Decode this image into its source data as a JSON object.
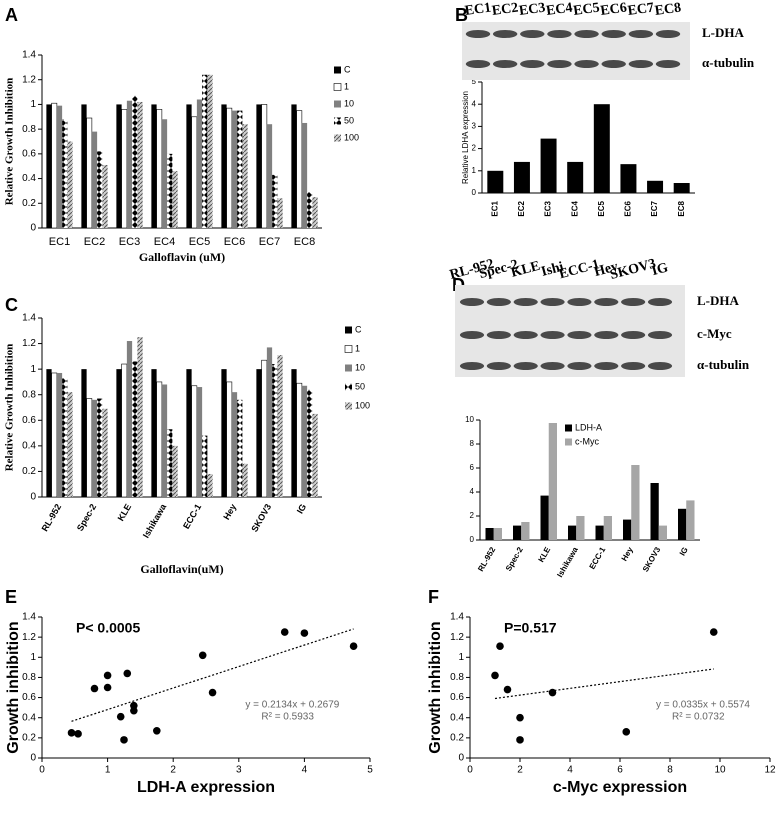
{
  "chart_data": [
    {
      "type": "bar",
      "panel": "A",
      "ylabel": "Relative Growth Inhibition",
      "xlabel": "Galloflavin (uM)",
      "categories": [
        "EC1",
        "EC2",
        "EC3",
        "EC4",
        "EC5",
        "EC6",
        "EC7",
        "EC8"
      ],
      "series": [
        {
          "name": "C",
          "color": "#000000",
          "pattern": "solid",
          "values": [
            1,
            1,
            1,
            1,
            1,
            1,
            1,
            1
          ]
        },
        {
          "name": "1",
          "color": "#ffffff",
          "pattern": "solid",
          "values": [
            1.01,
            0.89,
            0.96,
            0.96,
            0.9,
            0.97,
            1.0,
            0.95
          ]
        },
        {
          "name": "10",
          "color": "#808080",
          "pattern": "solid",
          "values": [
            0.99,
            0.78,
            1.03,
            0.88,
            1.04,
            0.95,
            0.84,
            0.85
          ]
        },
        {
          "name": "50",
          "color": "#000000",
          "pattern": "diamond",
          "values": [
            0.88,
            0.62,
            1.07,
            0.6,
            1.24,
            0.95,
            0.43,
            0.29
          ]
        },
        {
          "name": "100",
          "color": "#808080",
          "pattern": "hatch",
          "values": [
            0.7,
            0.51,
            1.02,
            0.46,
            1.24,
            0.84,
            0.24,
            0.25
          ]
        }
      ],
      "ylim": [
        0,
        1.4
      ],
      "yticks": [
        0,
        0.2,
        0.4,
        0.6,
        0.8,
        1,
        1.2,
        1.4
      ],
      "legend": "right"
    },
    {
      "type": "bar",
      "panel": "B",
      "ylabel": "Relative LDHA expression",
      "blot": {
        "lanes": [
          "EC1",
          "EC2",
          "EC3",
          "EC4",
          "EC5",
          "EC6",
          "EC7",
          "EC8"
        ],
        "bands": [
          "L-DHA",
          "α-tubulin"
        ]
      },
      "categories": [
        "EC1",
        "EC2",
        "EC3",
        "EC4",
        "EC5",
        "EC6",
        "EC7",
        "EC8"
      ],
      "series": [
        {
          "color": "#000000",
          "pattern": "solid",
          "values": [
            1,
            1.4,
            2.45,
            1.4,
            4.0,
            1.3,
            0.55,
            0.45
          ]
        }
      ],
      "ylim": [
        0,
        5
      ],
      "yticks": [
        0,
        1,
        2,
        3,
        4,
        5
      ]
    },
    {
      "type": "bar",
      "panel": "C",
      "ylabel": "Relative Growth Inhibition",
      "xlabel": "Galloflavin(uM)",
      "categories": [
        "RL-952",
        "Spec-2",
        "KLE",
        "Ishikawa",
        "ECC-1",
        "Hey",
        "SKOV3",
        "IG"
      ],
      "series": [
        {
          "name": "C",
          "color": "#000000",
          "pattern": "solid",
          "values": [
            1,
            1,
            1,
            1,
            1,
            1,
            1,
            1
          ]
        },
        {
          "name": "1",
          "color": "#ffffff",
          "pattern": "solid",
          "values": [
            0.97,
            0.77,
            1.04,
            0.9,
            0.87,
            0.9,
            1.07,
            0.89
          ]
        },
        {
          "name": "10",
          "color": "#808080",
          "pattern": "solid",
          "values": [
            0.97,
            0.76,
            1.22,
            0.88,
            0.86,
            0.82,
            1.17,
            0.87
          ]
        },
        {
          "name": "50",
          "color": "#000000",
          "pattern": "diamond",
          "values": [
            0.93,
            0.77,
            1.06,
            0.53,
            0.48,
            0.76,
            1.04,
            0.84
          ]
        },
        {
          "name": "100",
          "color": "#808080",
          "pattern": "hatch",
          "values": [
            0.82,
            0.69,
            1.25,
            0.4,
            0.18,
            0.26,
            1.11,
            0.65
          ]
        }
      ],
      "ylim": [
        0,
        1.4
      ],
      "yticks": [
        0,
        0.2,
        0.4,
        0.6,
        0.8,
        1,
        1.2,
        1.4
      ],
      "legend": "right"
    },
    {
      "type": "bar",
      "panel": "D",
      "blot": {
        "lanes": [
          "RL-952",
          "Spec-2",
          "KLE",
          "Ishi",
          "ECC-1",
          "Hey",
          "SKOV3",
          "IG"
        ],
        "bands": [
          "L-DHA",
          "c-Myc",
          "α-tubulin"
        ]
      },
      "categories": [
        "RL-952",
        "Spec-2",
        "KLE",
        "Ishikawa",
        "ECC-1",
        "Hey",
        "SKOV3",
        "IG"
      ],
      "series": [
        {
          "name": "LDH-A",
          "color": "#000000",
          "pattern": "solid",
          "values": [
            1,
            1.2,
            3.7,
            1.2,
            1.2,
            1.7,
            4.75,
            2.6
          ]
        },
        {
          "name": "c-Myc",
          "color": "#a6a6a6",
          "pattern": "solid",
          "values": [
            1,
            1.5,
            9.75,
            2,
            2,
            6.25,
            1.2,
            3.3
          ]
        }
      ],
      "ylim": [
        0,
        10
      ],
      "yticks": [
        0,
        2,
        4,
        6,
        8,
        10
      ],
      "legend": "top"
    },
    {
      "type": "scatter",
      "panel": "E",
      "p_label": "P< 0.0005",
      "ylabel": "Growth inhibition",
      "xlabel": "LDH-A expression",
      "x": [
        0.45,
        0.55,
        0.8,
        1.0,
        1.0,
        1.2,
        1.25,
        1.3,
        1.4,
        1.4,
        1.75,
        2.45,
        2.6,
        3.7,
        4.0,
        4.75
      ],
      "values": [
        0.25,
        0.24,
        0.69,
        0.7,
        0.82,
        0.41,
        0.18,
        0.84,
        0.52,
        0.47,
        0.27,
        1.02,
        0.65,
        1.25,
        1.24,
        1.11
      ],
      "trendline": {
        "slope": 0.2134,
        "intercept": 0.2679,
        "label": "y = 0.2134x + 0.2679",
        "r2_label": "R² = 0.5933"
      },
      "xlim": [
        0,
        5
      ],
      "xticks": [
        0,
        1,
        2,
        3,
        4,
        5
      ],
      "ylim": [
        0,
        1.4
      ],
      "yticks": [
        0,
        0.2,
        0.4,
        0.6,
        0.8,
        1,
        1.2,
        1.4
      ]
    },
    {
      "type": "scatter",
      "panel": "F",
      "p_label": "P=0.517",
      "ylabel": "Growth inhibition",
      "xlabel": "c-Myc expression",
      "x": [
        1.0,
        1.2,
        1.5,
        2.0,
        2.0,
        3.3,
        6.25,
        9.75
      ],
      "values": [
        0.82,
        1.11,
        0.68,
        0.4,
        0.18,
        0.65,
        0.26,
        1.25
      ],
      "trendline": {
        "slope": 0.0335,
        "intercept": 0.5574,
        "label": "y = 0.0335x + 0.5574",
        "r2_label": "R² = 0.0732"
      },
      "xlim": [
        0,
        12
      ],
      "xticks": [
        0,
        2,
        4,
        6,
        8,
        10,
        12
      ],
      "ylim": [
        0,
        1.4
      ],
      "yticks": [
        0,
        0.2,
        0.4,
        0.6,
        0.8,
        1,
        1.2,
        1.4
      ]
    }
  ]
}
